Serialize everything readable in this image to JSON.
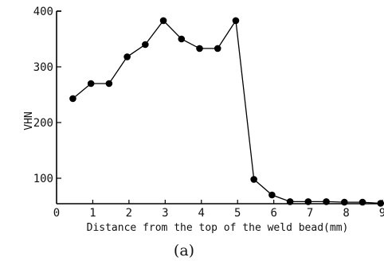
{
  "chart_data": {
    "type": "line",
    "title": "",
    "xlabel": "Distance from the top of the weld bead(mm)",
    "ylabel": "VHN",
    "caption": "(a)",
    "xlim": [
      0,
      9
    ],
    "ylim": [
      50,
      400
    ],
    "x_ticks": [
      "0",
      "1",
      "2",
      "3",
      "4",
      "5",
      "6",
      "7",
      "8",
      "9"
    ],
    "y_ticks": [
      "100",
      "200",
      "300",
      "400"
    ],
    "grid": false,
    "marker": "filled-circle",
    "series": [
      {
        "x": [
          0.45,
          0.95,
          1.45,
          1.95,
          2.45,
          2.95,
          3.45,
          3.95,
          4.45,
          4.95,
          5.45,
          5.95,
          6.45,
          6.95,
          7.45,
          7.95,
          8.45,
          8.95
        ],
        "y": [
          243,
          270,
          270,
          318,
          340,
          383,
          350,
          333,
          333,
          383,
          98,
          70,
          58,
          58,
          58,
          57,
          57,
          55
        ]
      }
    ],
    "colors": {
      "line": "#000000",
      "marker": "#000000"
    }
  }
}
